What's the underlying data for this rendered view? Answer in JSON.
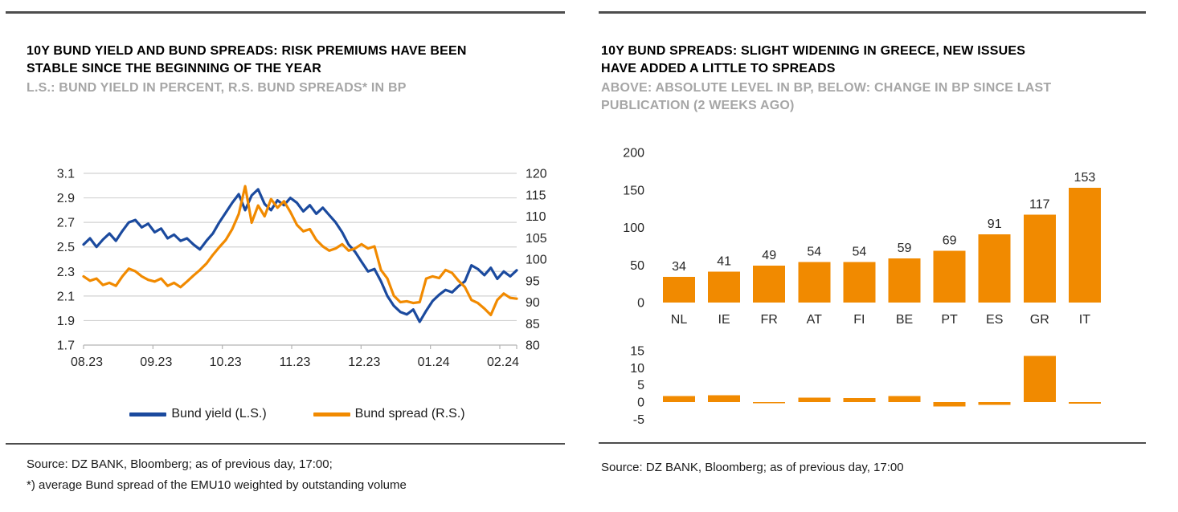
{
  "colors": {
    "blue": "#1b4a9e",
    "orange": "#f18a00",
    "subtitle_gray": "#a6a6a6",
    "rule_dark": "#4d4d4d",
    "gridline": "#d2d2d2",
    "axis_line": "#b3b3b3",
    "axis_text": "#262626"
  },
  "left_panel": {
    "title_line1": "10Y BUND YIELD AND BUND SPREADS: RISK PREMIUMS HAVE BEEN",
    "title_line2": "STABLE SINCE THE BEGINNING OF THE YEAR",
    "subtitle": "L.S.: BUND YIELD IN PERCENT, R.S. BUND SPREADS* IN BP",
    "legend": [
      {
        "label": "Bund yield (L.S.)",
        "color": "#1b4a9e"
      },
      {
        "label": "Bund spread (R.S.)",
        "color": "#f18a00"
      }
    ],
    "source_line1": "Source: DZ BANK, Bloomberg; as of previous day, 17:00;",
    "source_line2": "*) average Bund spread of the EMU10 weighted by outstanding volume"
  },
  "right_panel": {
    "title_line1": "10Y BUND SPREADS: SLIGHT WIDENING IN GREECE, NEW ISSUES",
    "title_line2": "HAVE ADDED A LITTLE TO SPREADS",
    "subtitle_line1": "ABOVE: ABSOLUTE LEVEL IN BP, BELOW: CHANGE IN BP SINCE LAST",
    "subtitle_line2": "PUBLICATION (2 WEEKS AGO)",
    "source": "Source: DZ BANK, Bloomberg; as of previous day, 17:00"
  },
  "chart_data": [
    {
      "type": "line",
      "title": "10Y Bund yield and Bund spreads",
      "x_tick_labels": [
        "08.23",
        "09.23",
        "10.23",
        "11.23",
        "12.23",
        "01.24",
        "02.24"
      ],
      "left_axis": {
        "label": "Bund yield in percent",
        "range": [
          1.7,
          3.1
        ],
        "ticks": [
          "3.1",
          "2.9",
          "2.7",
          "2.5",
          "2.3",
          "2.1",
          "1.9",
          "1.7"
        ]
      },
      "right_axis": {
        "label": "Bund spreads in bp",
        "range": [
          80,
          120
        ],
        "ticks": [
          "120",
          "115",
          "110",
          "105",
          "100",
          "95",
          "90",
          "85",
          "80"
        ]
      },
      "grid": "horizontal",
      "legend_position": "bottom",
      "series": [
        {
          "name": "Bund yield (L.S.)",
          "axis": "left",
          "color": "#1b4a9e",
          "values": [
            2.52,
            2.57,
            2.5,
            2.56,
            2.61,
            2.55,
            2.63,
            2.7,
            2.72,
            2.66,
            2.69,
            2.62,
            2.65,
            2.57,
            2.6,
            2.55,
            2.57,
            2.52,
            2.48,
            2.55,
            2.61,
            2.7,
            2.78,
            2.86,
            2.93,
            2.8,
            2.92,
            2.97,
            2.85,
            2.8,
            2.88,
            2.84,
            2.9,
            2.86,
            2.79,
            2.84,
            2.77,
            2.82,
            2.76,
            2.7,
            2.62,
            2.52,
            2.46,
            2.38,
            2.3,
            2.32,
            2.22,
            2.1,
            2.02,
            1.97,
            1.95,
            1.99,
            1.89,
            1.98,
            2.06,
            2.11,
            2.15,
            2.13,
            2.18,
            2.22,
            2.35,
            2.32,
            2.27,
            2.33,
            2.24,
            2.3,
            2.26,
            2.31
          ]
        },
        {
          "name": "Bund spread (R.S.)",
          "axis": "right",
          "color": "#f18a00",
          "values": [
            96.0,
            95.0,
            95.5,
            94.0,
            94.5,
            93.8,
            96.0,
            97.8,
            97.2,
            96.0,
            95.2,
            94.8,
            95.5,
            93.8,
            94.5,
            93.5,
            94.8,
            96.2,
            97.5,
            99.0,
            101.0,
            102.8,
            104.5,
            107.0,
            110.5,
            117.0,
            108.5,
            112.5,
            110.0,
            114.0,
            112.0,
            113.5,
            111.0,
            108.0,
            106.5,
            107.0,
            104.5,
            103.0,
            102.0,
            102.5,
            103.5,
            102.0,
            102.5,
            103.5,
            102.5,
            103.0,
            97.5,
            95.5,
            91.5,
            90.0,
            90.2,
            89.8,
            90.0,
            95.5,
            96.0,
            95.6,
            97.5,
            96.8,
            95.0,
            93.5,
            90.5,
            89.8,
            88.5,
            87.0,
            90.5,
            92.0,
            91.0,
            90.8
          ]
        }
      ]
    },
    {
      "type": "bar",
      "title": "Absolute level in bp",
      "categories": [
        "NL",
        "IE",
        "FR",
        "AT",
        "FI",
        "BE",
        "PT",
        "ES",
        "GR",
        "IT"
      ],
      "values": [
        34,
        41,
        49,
        54,
        54,
        59,
        69,
        91,
        117,
        153
      ],
      "data_labels": [
        "34",
        "41",
        "49",
        "54",
        "54",
        "59",
        "69",
        "91",
        "117",
        "153"
      ],
      "ylim": [
        0,
        200
      ],
      "yticks": [
        "200",
        "150",
        "100",
        "50",
        "0"
      ],
      "bar_color": "#f18a00",
      "grid": "off",
      "legend_position": "none"
    },
    {
      "type": "bar",
      "title": "Change in bp since last publication (2 weeks ago)",
      "categories": [
        "NL",
        "IE",
        "FR",
        "AT",
        "FI",
        "BE",
        "PT",
        "ES",
        "GR",
        "IT"
      ],
      "values": [
        1.8,
        2.0,
        -0.3,
        1.3,
        1.2,
        1.7,
        -1.3,
        -0.8,
        13.5,
        -0.5
      ],
      "ylim": [
        -5,
        15
      ],
      "yticks": [
        "15",
        "10",
        "5",
        "0",
        "-5"
      ],
      "bar_color": "#f18a00",
      "grid": "off",
      "legend_position": "none"
    }
  ]
}
